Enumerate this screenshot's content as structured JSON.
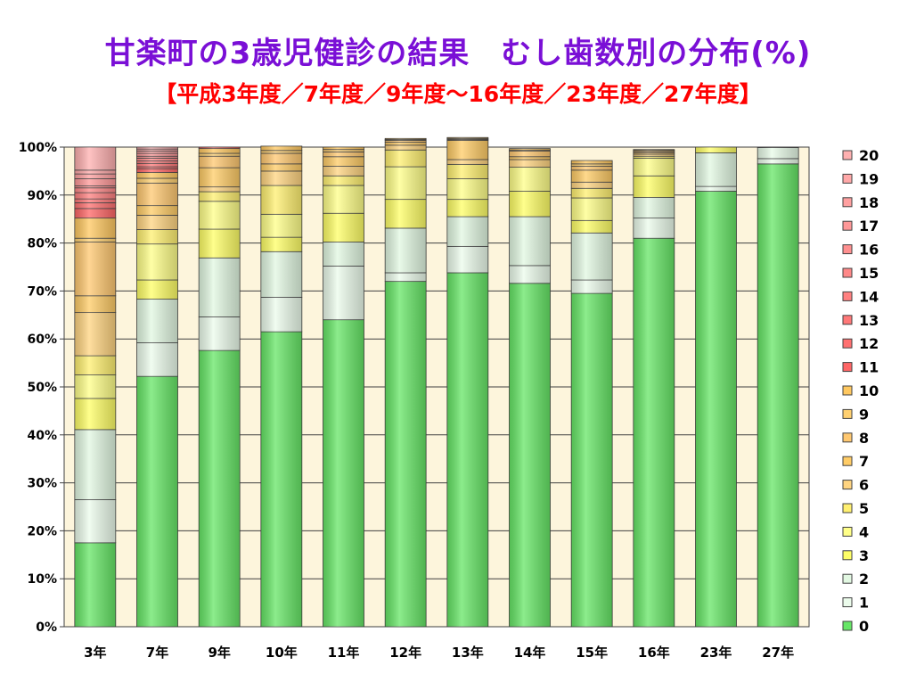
{
  "chart_data": {
    "type": "bar",
    "stacked": true,
    "percent": true,
    "title": "甘楽町の3歳児健診の結果　むし歯数別の分布(%)",
    "subtitle": "【平成3年度／7年度／9年度～16年度／23年度／27年度】",
    "xlabel": "",
    "ylabel": "",
    "ylim": [
      0,
      100
    ],
    "yticks": [
      "0%",
      "10%",
      "20%",
      "30%",
      "40%",
      "50%",
      "60%",
      "70%",
      "80%",
      "90%",
      "100%"
    ],
    "grid": true,
    "legend_position": "right",
    "categories": [
      "3年",
      "7年",
      "9年",
      "10年",
      "11年",
      "12年",
      "13年",
      "14年",
      "15年",
      "16年",
      "23年",
      "27年"
    ],
    "series": [
      {
        "name": "0",
        "color": "#66e666",
        "values": [
          17.5,
          52.2,
          57.6,
          61.5,
          64.0,
          72.0,
          73.8,
          71.6,
          69.5,
          81.0,
          90.8,
          96.5
        ]
      },
      {
        "name": "1",
        "color": "#ecfcec",
        "values": [
          9.0,
          7.0,
          7.0,
          7.2,
          11.2,
          1.8,
          5.5,
          3.7,
          2.8,
          4.2,
          1.0,
          1.1
        ]
      },
      {
        "name": "2",
        "color": "#e2f8e2",
        "values": [
          14.6,
          9.1,
          12.3,
          9.5,
          5.0,
          9.3,
          6.2,
          10.2,
          9.8,
          4.3,
          7.0,
          2.3
        ]
      },
      {
        "name": "3",
        "color": "#ffff66",
        "values": [
          6.5,
          4.0,
          6.0,
          3.0,
          6.0,
          6.0,
          3.6,
          5.3,
          2.6,
          4.5,
          1.2,
          0.1
        ]
      },
      {
        "name": "4",
        "color": "#ffff88",
        "values": [
          4.9,
          7.5,
          5.8,
          4.8,
          5.8,
          6.8,
          4.3,
          5.0,
          4.7,
          3.7,
          0.0,
          0.0
        ]
      },
      {
        "name": "5",
        "color": "#fff070",
        "values": [
          4.0,
          3.0,
          2.0,
          6.0,
          2.0,
          3.5,
          3.0,
          0.0,
          2.0,
          0.4,
          0.0,
          0.0
        ]
      },
      {
        "name": "6",
        "color": "#ffd480",
        "values": [
          9.0,
          3.0,
          1.0,
          3.0,
          2.0,
          1.0,
          1.0,
          1.6,
          1.3,
          0.4,
          0.0,
          0.0
        ]
      },
      {
        "name": "7",
        "color": "#ffcc66",
        "values": [
          3.5,
          2.0,
          4.0,
          1.5,
          2.0,
          0.6,
          4.0,
          0.6,
          2.5,
          0.3,
          0.0,
          0.0
        ]
      },
      {
        "name": "8",
        "color": "#ffc870",
        "values": [
          11.2,
          4.7,
          2.4,
          2.2,
          1.0,
          0.4,
          0.2,
          1.2,
          0.8,
          0.3,
          0.0,
          0.0
        ]
      },
      {
        "name": "9",
        "color": "#ffd070",
        "values": [
          0.8,
          1.0,
          0.6,
          0.6,
          0.5,
          0.2,
          0.2,
          0.2,
          0.5,
          0.2,
          0.0,
          0.0
        ]
      },
      {
        "name": "10",
        "color": "#ffc860",
        "values": [
          4.2,
          1.2,
          1.0,
          0.9,
          0.5,
          0.2,
          0.2,
          0.3,
          0.7,
          0.2,
          0.0,
          0.0
        ]
      },
      {
        "name": "11",
        "color": "#ff6666",
        "values": [
          2.0,
          0.8,
          0.3,
          0.0,
          0.0,
          0.0,
          0.0,
          0.0,
          0.0,
          0.0,
          0.0,
          0.0
        ]
      },
      {
        "name": "12",
        "color": "#ff7070",
        "values": [
          1.2,
          0.4,
          0.0,
          0.0,
          0.0,
          0.0,
          0.0,
          0.0,
          0.0,
          0.0,
          0.0,
          0.0
        ]
      },
      {
        "name": "13",
        "color": "#ff7878",
        "values": [
          0.8,
          0.7,
          0.0,
          0.0,
          0.0,
          0.0,
          0.0,
          0.0,
          0.0,
          0.0,
          0.0,
          0.0
        ]
      },
      {
        "name": "14",
        "color": "#ff8080",
        "values": [
          1.3,
          0.5,
          0.0,
          0.0,
          0.0,
          0.0,
          0.0,
          0.0,
          0.0,
          0.0,
          0.0,
          0.0
        ]
      },
      {
        "name": "15",
        "color": "#ff8888",
        "values": [
          1.0,
          0.6,
          0.0,
          0.0,
          0.0,
          0.0,
          0.0,
          0.0,
          0.0,
          0.0,
          0.0,
          0.0
        ]
      },
      {
        "name": "16",
        "color": "#ff9090",
        "values": [
          0.4,
          0.4,
          0.0,
          0.0,
          0.0,
          0.0,
          0.0,
          0.0,
          0.0,
          0.0,
          0.0,
          0.0
        ]
      },
      {
        "name": "17",
        "color": "#ff9898",
        "values": [
          1.5,
          0.6,
          0.0,
          0.0,
          0.0,
          0.0,
          0.0,
          0.0,
          0.0,
          0.0,
          0.0,
          0.0
        ]
      },
      {
        "name": "18",
        "color": "#ffa0a0",
        "values": [
          1.0,
          0.5,
          0.0,
          0.0,
          0.0,
          0.0,
          0.0,
          0.0,
          0.0,
          0.0,
          0.0,
          0.0
        ]
      },
      {
        "name": "19",
        "color": "#ffa8a8",
        "values": [
          0.8,
          0.4,
          0.0,
          0.0,
          0.0,
          0.0,
          0.0,
          0.0,
          0.0,
          0.0,
          0.0,
          0.0
        ]
      },
      {
        "name": "20",
        "color": "#ffb0b0",
        "values": [
          4.8,
          0.4,
          0.0,
          0.0,
          0.0,
          0.0,
          0.0,
          0.0,
          0.0,
          0.0,
          0.0,
          0.0
        ]
      }
    ]
  },
  "colors": {
    "title": "#7a0fd6",
    "subtitle": "#ff0000",
    "plot_background": "#fdf5dc",
    "bar_outline": "#404040",
    "top_segment_green": "#e8fbe8"
  }
}
